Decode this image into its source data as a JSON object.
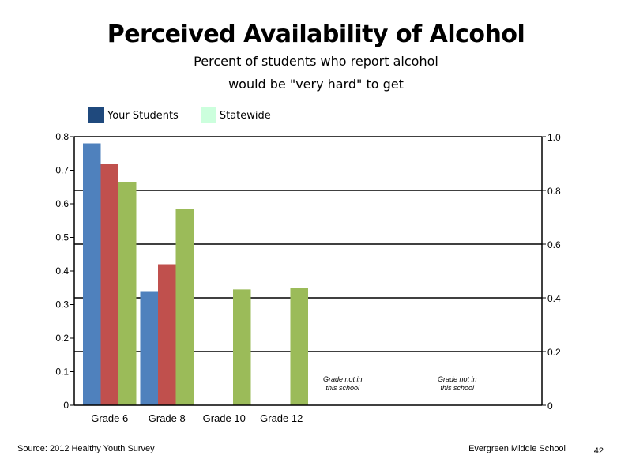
{
  "chart_data": {
    "type": "bar",
    "title": "Perceived Availability of Alcohol",
    "subtitle_lines": [
      "Percent of students who report alcohol",
      "would be \"very hard\" to get"
    ],
    "categories": [
      "Grade 6",
      "Grade 8",
      "Grade 10",
      "Grade 12"
    ],
    "series": [
      {
        "name": "Your Students",
        "color": "#4f81bd",
        "values": [
          0.78,
          0.34,
          null,
          null
        ]
      },
      {
        "name": "",
        "color": "#c0504d",
        "values": [
          0.72,
          0.42,
          null,
          null
        ]
      },
      {
        "name": "",
        "color": "#9bbb59",
        "values": [
          0.665,
          0.585,
          0.345,
          0.35
        ]
      }
    ],
    "legend": [
      {
        "name": "Your Students",
        "color": "#1f497d"
      },
      {
        "name": "Statewide",
        "color": "#ccffdd"
      }
    ],
    "ylim": [
      0,
      0.8
    ],
    "yticks": [
      "0",
      "0.1",
      "0.2",
      "0.3",
      "0.4",
      "0.5",
      "0.6",
      "0.7",
      "0.8"
    ],
    "y2lim": [
      0,
      1.0
    ],
    "y2ticks": [
      "0",
      "0.2",
      "0.4",
      "0.6",
      "0.8",
      "1.0"
    ],
    "annotations": [
      {
        "category_slot": 4,
        "lines": [
          "Grade not in",
          "this school"
        ]
      },
      {
        "category_slot": 6,
        "lines": [
          "Grade not in",
          "this school"
        ]
      }
    ],
    "grid": true,
    "legend_position": "top-left"
  },
  "footer": {
    "source": "Source: 2012 Healthy Youth Survey",
    "school": "Evergreen Middle  School",
    "page": "42"
  }
}
